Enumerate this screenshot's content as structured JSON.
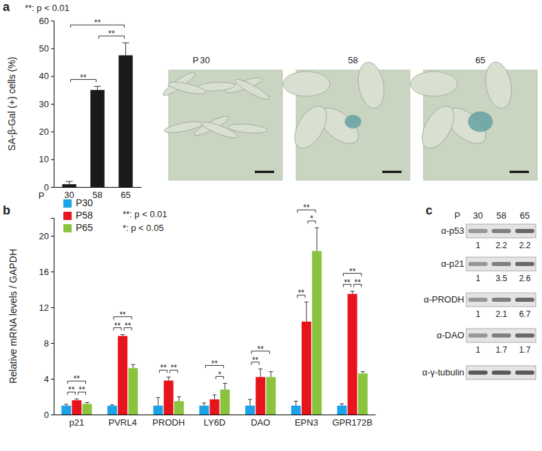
{
  "chart_data": [
    {
      "type": "bar",
      "panel": "a",
      "ylabel": "SA-β-Gal (+) cells (%)",
      "xlabel": "P",
      "categories": [
        "30",
        "58",
        "65"
      ],
      "values": [
        1,
        35,
        47.5
      ],
      "errors": [
        1,
        1.3,
        4.5
      ],
      "color": "#1a1a1a",
      "ylim": [
        0,
        60
      ],
      "yticks": [
        0,
        10,
        20,
        30,
        40,
        50,
        60
      ],
      "annotations": [
        "**: p < 0.01"
      ],
      "significance": [
        {
          "from": 0,
          "to": 1,
          "label": "**"
        },
        {
          "from": 1,
          "to": 2,
          "label": "**"
        },
        {
          "from": 0,
          "to": 2,
          "label": "**"
        }
      ]
    },
    {
      "type": "bar",
      "panel": "b",
      "ylabel": "Relative mRNA levels / GAPDH",
      "categories": [
        "p21",
        "PVRL4",
        "PRODH",
        "LY6D",
        "DAO",
        "EPN3",
        "GPR172B"
      ],
      "series": [
        {
          "name": "P30",
          "color": "#1aa3e8",
          "values": [
            1,
            1,
            1,
            1,
            1,
            1,
            1
          ],
          "errors": [
            0.15,
            0.1,
            0.9,
            0.3,
            0.7,
            0.5,
            0.2
          ]
        },
        {
          "name": "P58",
          "color": "#e8141c",
          "values": [
            1.6,
            8.8,
            3.8,
            1.7,
            4.2,
            10.4,
            13.5
          ],
          "errors": [
            0.15,
            0.15,
            0.4,
            0.5,
            0.9,
            2.2,
            0.3
          ]
        },
        {
          "name": "P65",
          "color": "#8ac43f",
          "values": [
            1.2,
            5.2,
            1.5,
            2.8,
            4.2,
            18.3,
            4.6
          ],
          "errors": [
            0.15,
            0.4,
            0.5,
            0.7,
            0.6,
            2.6,
            0.2
          ]
        }
      ],
      "ylim": [
        0,
        22
      ],
      "yticks": [
        0,
        4,
        8,
        12,
        16,
        20
      ],
      "legend": "upper left",
      "annotations": [
        "**: p < 0.01",
        "*: p < 0.05"
      ],
      "significance": [
        {
          "category": 0,
          "from": 0,
          "to": 1,
          "label": "**"
        },
        {
          "category": 0,
          "from": 1,
          "to": 2,
          "label": "**"
        },
        {
          "category": 0,
          "from": 0,
          "to": 2,
          "label": "**"
        },
        {
          "category": 1,
          "from": 0,
          "to": 1,
          "label": "**"
        },
        {
          "category": 1,
          "from": 1,
          "to": 2,
          "label": "**"
        },
        {
          "category": 1,
          "from": 0,
          "to": 2,
          "label": "**"
        },
        {
          "category": 2,
          "from": 0,
          "to": 1,
          "label": "**"
        },
        {
          "category": 2,
          "from": 1,
          "to": 2,
          "label": "**"
        },
        {
          "category": 3,
          "from": 1,
          "to": 2,
          "label": "*"
        },
        {
          "category": 3,
          "from": 0,
          "to": 2,
          "label": "**"
        },
        {
          "category": 4,
          "from": 0,
          "to": 1,
          "label": "**"
        },
        {
          "category": 4,
          "from": 0,
          "to": 2,
          "label": "**"
        },
        {
          "category": 5,
          "from": 0,
          "to": 1,
          "label": "**"
        },
        {
          "category": 5,
          "from": 1,
          "to": 2,
          "label": "*"
        },
        {
          "category": 5,
          "from": 0,
          "to": 2,
          "label": "**"
        },
        {
          "category": 6,
          "from": 0,
          "to": 1,
          "label": "**"
        },
        {
          "category": 6,
          "from": 1,
          "to": 2,
          "label": "**"
        },
        {
          "category": 6,
          "from": 0,
          "to": 2,
          "label": "**"
        }
      ]
    }
  ],
  "micrographs": {
    "label": "P",
    "passages": [
      "30",
      "58",
      "65"
    ]
  },
  "blot": {
    "panel": "c",
    "label": "P",
    "lanes": [
      "30",
      "58",
      "65"
    ],
    "rows": [
      {
        "antibody": "α-p53",
        "values": [
          1,
          2.2,
          2.2
        ]
      },
      {
        "antibody": "α-p21",
        "values": [
          1,
          3.5,
          2.6
        ]
      },
      {
        "antibody": "α-PRODH",
        "values": [
          1,
          2.1,
          6.7
        ]
      },
      {
        "antibody": "α-DAO",
        "values": [
          1,
          1.7,
          1.7
        ]
      },
      {
        "antibody": "α-γ-tubulin"
      }
    ]
  }
}
